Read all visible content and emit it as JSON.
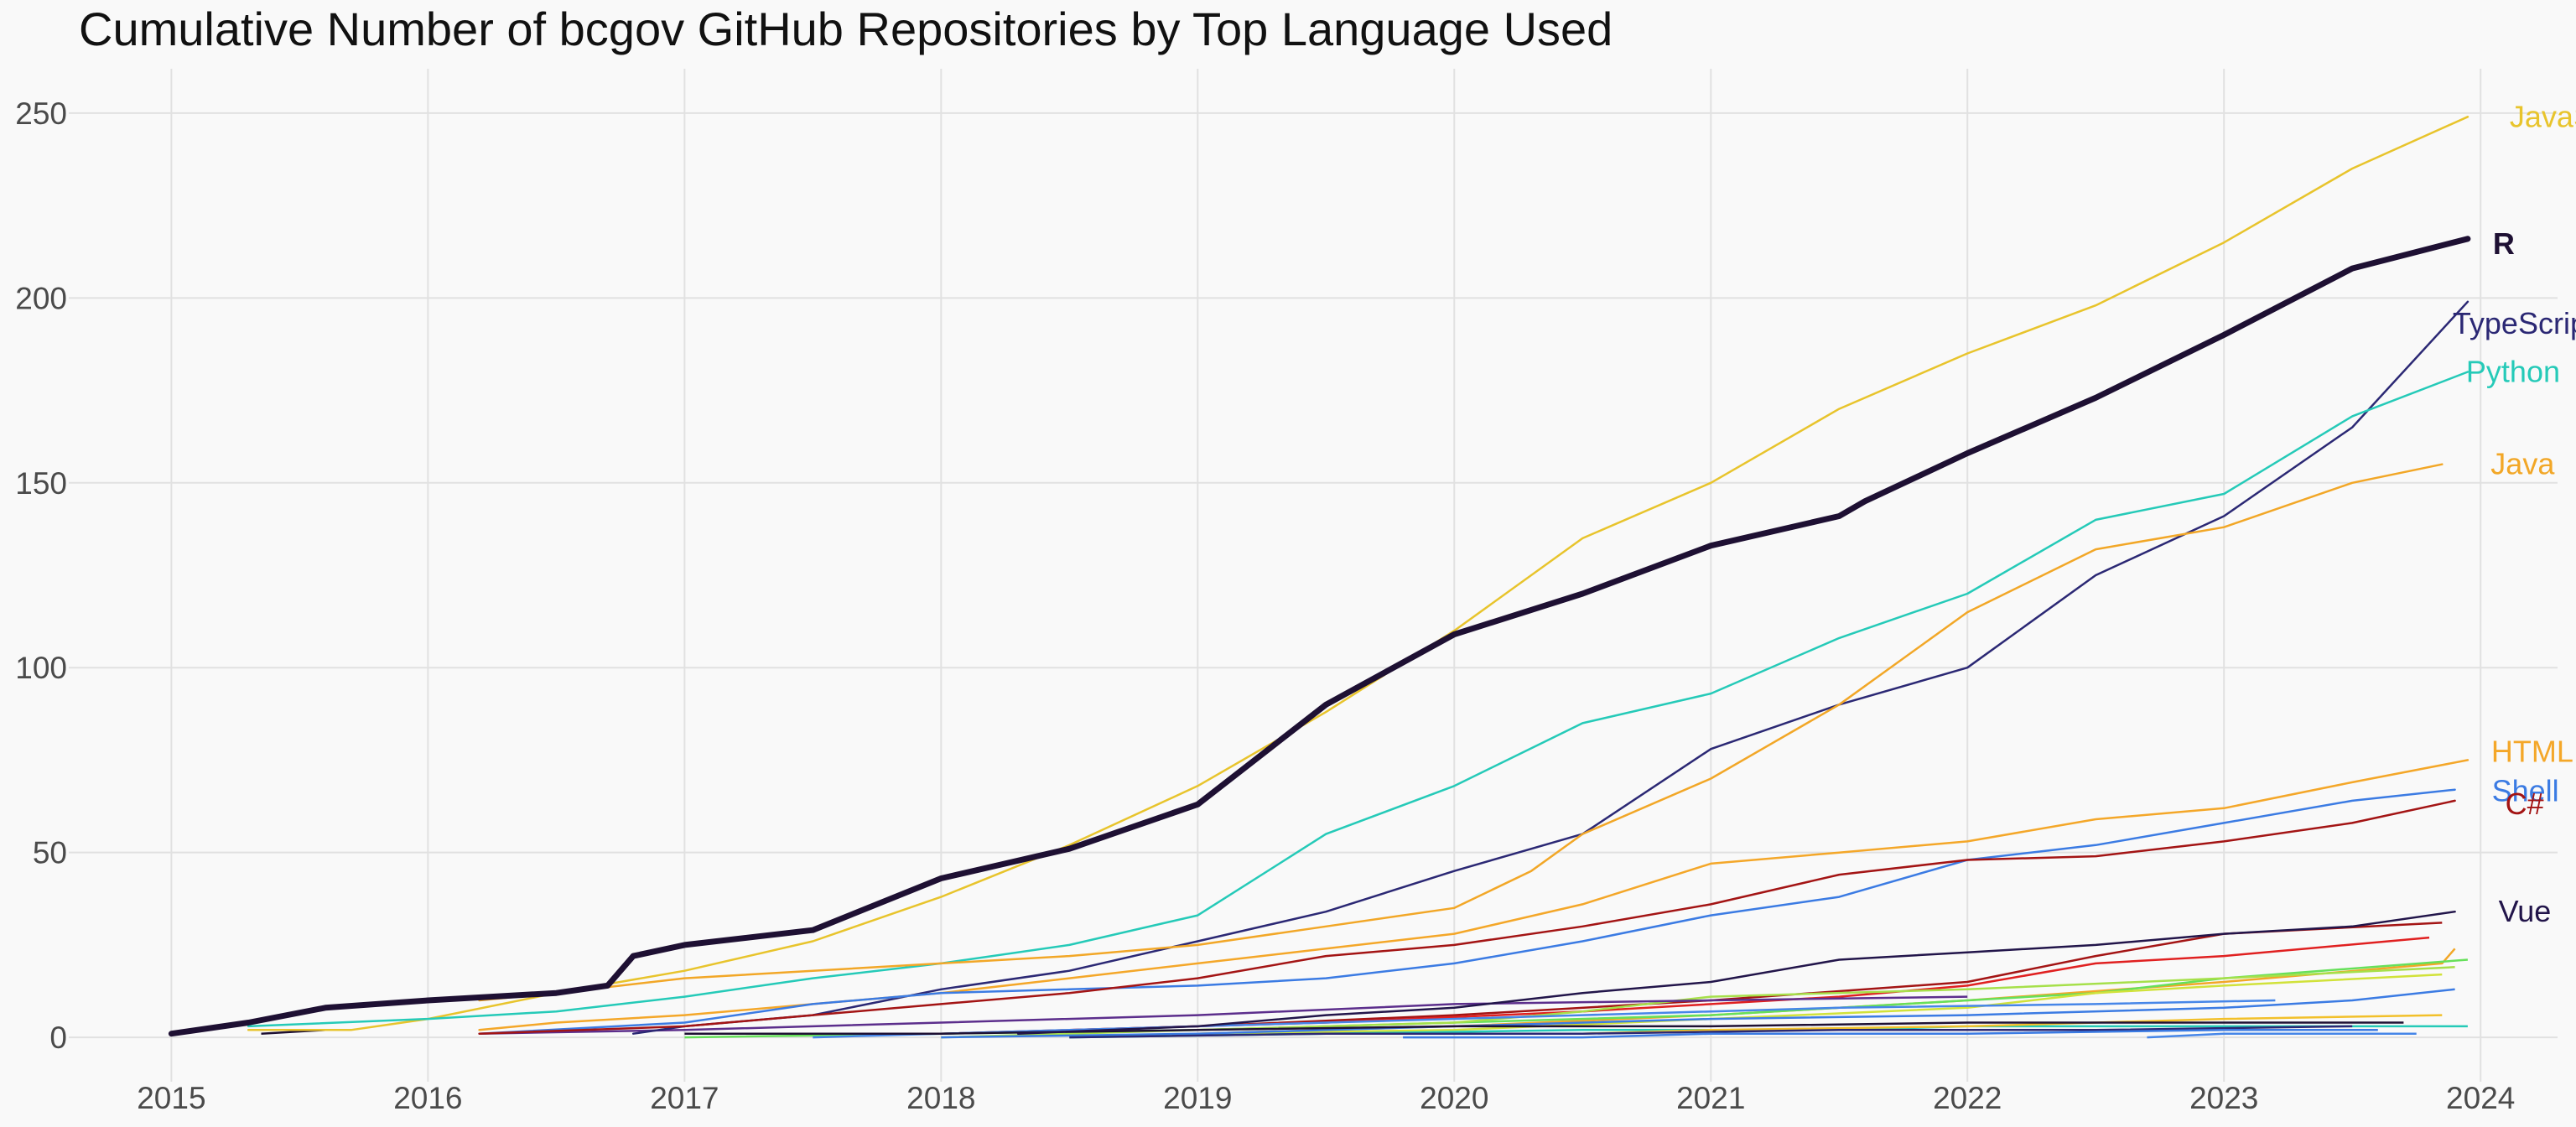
{
  "chart_data": {
    "type": "line",
    "title": "Cumulative Number of bcgov GitHub Repositories by Top Language Used",
    "xlabel": "",
    "ylabel": "",
    "xlim": [
      2014.6,
      2024.3
    ],
    "ylim": [
      -12,
      262
    ],
    "x_ticks": [
      {
        "label": "2015",
        "value": 2015
      },
      {
        "label": "2016",
        "value": 2016
      },
      {
        "label": "2017",
        "value": 2017
      },
      {
        "label": "2018",
        "value": 2018
      },
      {
        "label": "2019",
        "value": 2019
      },
      {
        "label": "2020",
        "value": 2020
      },
      {
        "label": "2021",
        "value": 2021
      },
      {
        "label": "2022",
        "value": 2022
      },
      {
        "label": "2023",
        "value": 2023
      },
      {
        "label": "2024",
        "value": 2024
      }
    ],
    "y_ticks": [
      {
        "label": "0",
        "value": 0
      },
      {
        "label": "50",
        "value": 50
      },
      {
        "label": "100",
        "value": 100
      },
      {
        "label": "150",
        "value": 150
      },
      {
        "label": "200",
        "value": 200
      },
      {
        "label": "250",
        "value": 250
      }
    ],
    "grid": true,
    "legend": "none (series labelled at line ends)",
    "series": [
      {
        "name": "JavaScript",
        "color": "#E8C42C",
        "width": 2.5,
        "label_size": "normal",
        "x": [
          2015.3,
          2015.7,
          2016.0,
          2016.5,
          2017.0,
          2017.5,
          2018.0,
          2018.5,
          2019.0,
          2019.5,
          2020.0,
          2020.5,
          2021.0,
          2021.5,
          2022.0,
          2022.5,
          2023.0,
          2023.5,
          2023.95
        ],
        "y": [
          2,
          2,
          5,
          12,
          18,
          26,
          38,
          52,
          68,
          88,
          110,
          135,
          150,
          170,
          185,
          198,
          215,
          235,
          249
        ]
      },
      {
        "name": "R",
        "color": "#1E1033",
        "width": 7,
        "label_size": "large",
        "x": [
          2015.0,
          2015.3,
          2015.6,
          2016.0,
          2016.5,
          2016.7,
          2016.8,
          2017.0,
          2017.5,
          2018.0,
          2018.5,
          2019.0,
          2019.5,
          2020.0,
          2020.5,
          2021.0,
          2021.5,
          2021.6,
          2022.0,
          2022.5,
          2023.0,
          2023.5,
          2023.95
        ],
        "y": [
          1,
          4,
          8,
          10,
          12,
          14,
          22,
          25,
          29,
          43,
          51,
          63,
          90,
          109,
          120,
          133,
          141,
          145,
          158,
          173,
          190,
          208,
          216
        ]
      },
      {
        "name": "TypeScript",
        "color": "#2B2874",
        "width": 2.5,
        "label_size": "normal",
        "x": [
          2016.8,
          2017.0,
          2017.5,
          2018.0,
          2018.5,
          2019.0,
          2019.5,
          2020.0,
          2020.5,
          2021.0,
          2021.5,
          2022.0,
          2022.5,
          2023.0,
          2023.5,
          2023.95
        ],
        "y": [
          1,
          3,
          6,
          13,
          18,
          26,
          34,
          45,
          55,
          78,
          90,
          100,
          125,
          141,
          165,
          199
        ]
      },
      {
        "name": "Python",
        "color": "#25CAB8",
        "width": 2.5,
        "label_size": "normal",
        "x": [
          2015.3,
          2016.0,
          2016.5,
          2017.0,
          2017.5,
          2018.0,
          2018.5,
          2019.0,
          2019.5,
          2020.0,
          2020.5,
          2021.0,
          2021.5,
          2022.0,
          2022.5,
          2023.0,
          2023.5,
          2023.95
        ],
        "y": [
          3,
          5,
          7,
          11,
          16,
          20,
          25,
          33,
          55,
          68,
          85,
          93,
          108,
          120,
          140,
          147,
          168,
          180
        ]
      },
      {
        "name": "Java",
        "color": "#F2A727",
        "width": 2.5,
        "label_size": "normal",
        "x": [
          2016.2,
          2016.5,
          2017.0,
          2017.5,
          2018.0,
          2018.5,
          2019.0,
          2019.5,
          2020.0,
          2020.3,
          2020.5,
          2021.0,
          2021.5,
          2022.0,
          2022.5,
          2023.0,
          2023.5,
          2023.85
        ],
        "y": [
          10,
          12,
          16,
          18,
          20,
          22,
          25,
          30,
          35,
          45,
          55,
          70,
          90,
          115,
          132,
          138,
          150,
          155
        ]
      },
      {
        "name": "HTML",
        "color": "#F4A729",
        "width": 2.5,
        "label_size": "normal",
        "x": [
          2016.2,
          2016.5,
          2017.0,
          2017.5,
          2018.0,
          2018.5,
          2019.0,
          2019.5,
          2020.0,
          2020.5,
          2021.0,
          2021.5,
          2022.0,
          2022.5,
          2023.0,
          2023.5,
          2023.95
        ],
        "y": [
          2,
          4,
          6,
          9,
          12,
          16,
          20,
          24,
          28,
          36,
          47,
          50,
          53,
          59,
          62,
          69,
          75
        ]
      },
      {
        "name": "Shell",
        "color": "#3B7BE3",
        "width": 2.5,
        "label_size": "normal",
        "x": [
          2016.2,
          2017.0,
          2017.5,
          2018.0,
          2018.5,
          2019.0,
          2019.5,
          2020.0,
          2020.5,
          2021.0,
          2021.5,
          2022.0,
          2022.5,
          2023.0,
          2023.5,
          2023.9
        ],
        "y": [
          1,
          4,
          9,
          12,
          13,
          14,
          16,
          20,
          26,
          33,
          38,
          48,
          52,
          58,
          64,
          67
        ]
      },
      {
        "name": "C#",
        "color": "#A31414",
        "width": 2.5,
        "label_size": "normal",
        "x": [
          2016.2,
          2017.0,
          2017.5,
          2018.0,
          2018.5,
          2019.0,
          2019.5,
          2020.0,
          2020.5,
          2021.0,
          2021.5,
          2022.0,
          2022.5,
          2023.0,
          2023.5,
          2023.9
        ],
        "y": [
          1,
          3,
          6,
          9,
          12,
          16,
          22,
          25,
          30,
          36,
          44,
          48,
          49,
          53,
          58,
          64
        ]
      },
      {
        "name": "Vue",
        "color": "#22154A",
        "width": 2.5,
        "label_size": "normal",
        "x": [
          2018.3,
          2019.0,
          2019.5,
          2020.0,
          2020.5,
          2021.0,
          2021.5,
          2022.0,
          2022.5,
          2023.0,
          2023.5,
          2023.9
        ],
        "y": [
          1,
          3,
          6,
          8,
          12,
          15,
          21,
          23,
          25,
          28,
          30,
          34
        ]
      }
    ],
    "minor_series": [
      {
        "color": "#A31414",
        "x": [
          2018.0,
          2019.0,
          2020.0,
          2021.0,
          2022.0,
          2022.5,
          2023.0,
          2023.85
        ],
        "y": [
          1,
          3,
          6,
          10,
          15,
          22,
          28,
          31
        ]
      },
      {
        "color": "#E02020",
        "x": [
          2018.5,
          2019.5,
          2020.5,
          2021.5,
          2022.0,
          2022.5,
          2023.0,
          2023.8
        ],
        "y": [
          2,
          4,
          7,
          11,
          14,
          20,
          22,
          27
        ]
      },
      {
        "color": "#F2A727",
        "x": [
          2019.0,
          2020.0,
          2021.0,
          2022.0,
          2023.0,
          2023.85,
          2023.9
        ],
        "y": [
          1,
          3,
          6,
          10,
          15,
          20,
          24
        ]
      },
      {
        "color": "#66E05A",
        "x": [
          2017.0,
          2018.0,
          2019.0,
          2020.0,
          2021.0,
          2022.0,
          2022.5,
          2023.0,
          2023.95
        ],
        "y": [
          0,
          1,
          2,
          4,
          6,
          10,
          12,
          16,
          21
        ]
      },
      {
        "color": "#A6E04A",
        "x": [
          2018.0,
          2019.0,
          2020.0,
          2020.5,
          2021.0,
          2022.0,
          2023.0,
          2023.9
        ],
        "y": [
          0,
          2,
          4,
          7,
          11,
          13,
          16,
          19
        ]
      },
      {
        "color": "#D1E23A",
        "x": [
          2019.0,
          2020.0,
          2021.0,
          2022.0,
          2022.5,
          2023.0,
          2023.85
        ],
        "y": [
          1,
          2,
          5,
          8,
          12,
          14,
          17
        ]
      },
      {
        "color": "#3B7BE3",
        "x": [
          2018.0,
          2019.0,
          2020.0,
          2021.0,
          2022.0,
          2023.0,
          2023.5,
          2023.9
        ],
        "y": [
          0,
          1,
          3,
          5,
          6,
          8,
          10,
          13
        ]
      },
      {
        "color": "#4686E8",
        "x": [
          2017.5,
          2018.5,
          2019.5,
          2020.5,
          2021.5,
          2022.5,
          2023.2
        ],
        "y": [
          0,
          2,
          4,
          6,
          8,
          9,
          10
        ]
      },
      {
        "color": "#5C2E8C",
        "x": [
          2016.2,
          2017.0,
          2018.0,
          2019.0,
          2020.0,
          2021.0,
          2022.0
        ],
        "y": [
          1,
          2,
          4,
          6,
          9,
          10,
          11
        ]
      },
      {
        "color": "#25CAB8",
        "x": [
          2018.5,
          2019.5,
          2020.5,
          2021.5,
          2022.0,
          2023.0,
          2023.95
        ],
        "y": [
          0,
          1,
          2,
          2,
          3,
          3,
          3
        ]
      },
      {
        "color": "#F2C02A",
        "x": [
          2020.5,
          2021.0,
          2022.0,
          2022.5,
          2023.0,
          2023.85
        ],
        "y": [
          1,
          2,
          3,
          4,
          5,
          6
        ]
      },
      {
        "color": "#1E1033",
        "x": [
          2017.0,
          2018.0,
          2019.0,
          2020.0,
          2021.0,
          2022.0,
          2023.0,
          2023.7
        ],
        "y": [
          1,
          1,
          2,
          3,
          3,
          4,
          4,
          4
        ]
      },
      {
        "color": "#2B2874",
        "x": [
          2018.5,
          2019.5,
          2020.5,
          2021.5,
          2022.5,
          2023.5
        ],
        "y": [
          0,
          1,
          1,
          2,
          2,
          3
        ]
      },
      {
        "color": "#3B7BE3",
        "x": [
          2019.8,
          2020.5,
          2021.0,
          2022.0,
          2023.0,
          2023.6
        ],
        "y": [
          0,
          0,
          1,
          1,
          2,
          2
        ]
      },
      {
        "color": "#1E1033",
        "x": [
          2015.35,
          2015.6
        ],
        "y": [
          1,
          2
        ]
      },
      {
        "color": "#4686E8",
        "x": [
          2022.7,
          2023.0,
          2023.5,
          2023.75
        ],
        "y": [
          0,
          1,
          1,
          1
        ]
      }
    ]
  }
}
